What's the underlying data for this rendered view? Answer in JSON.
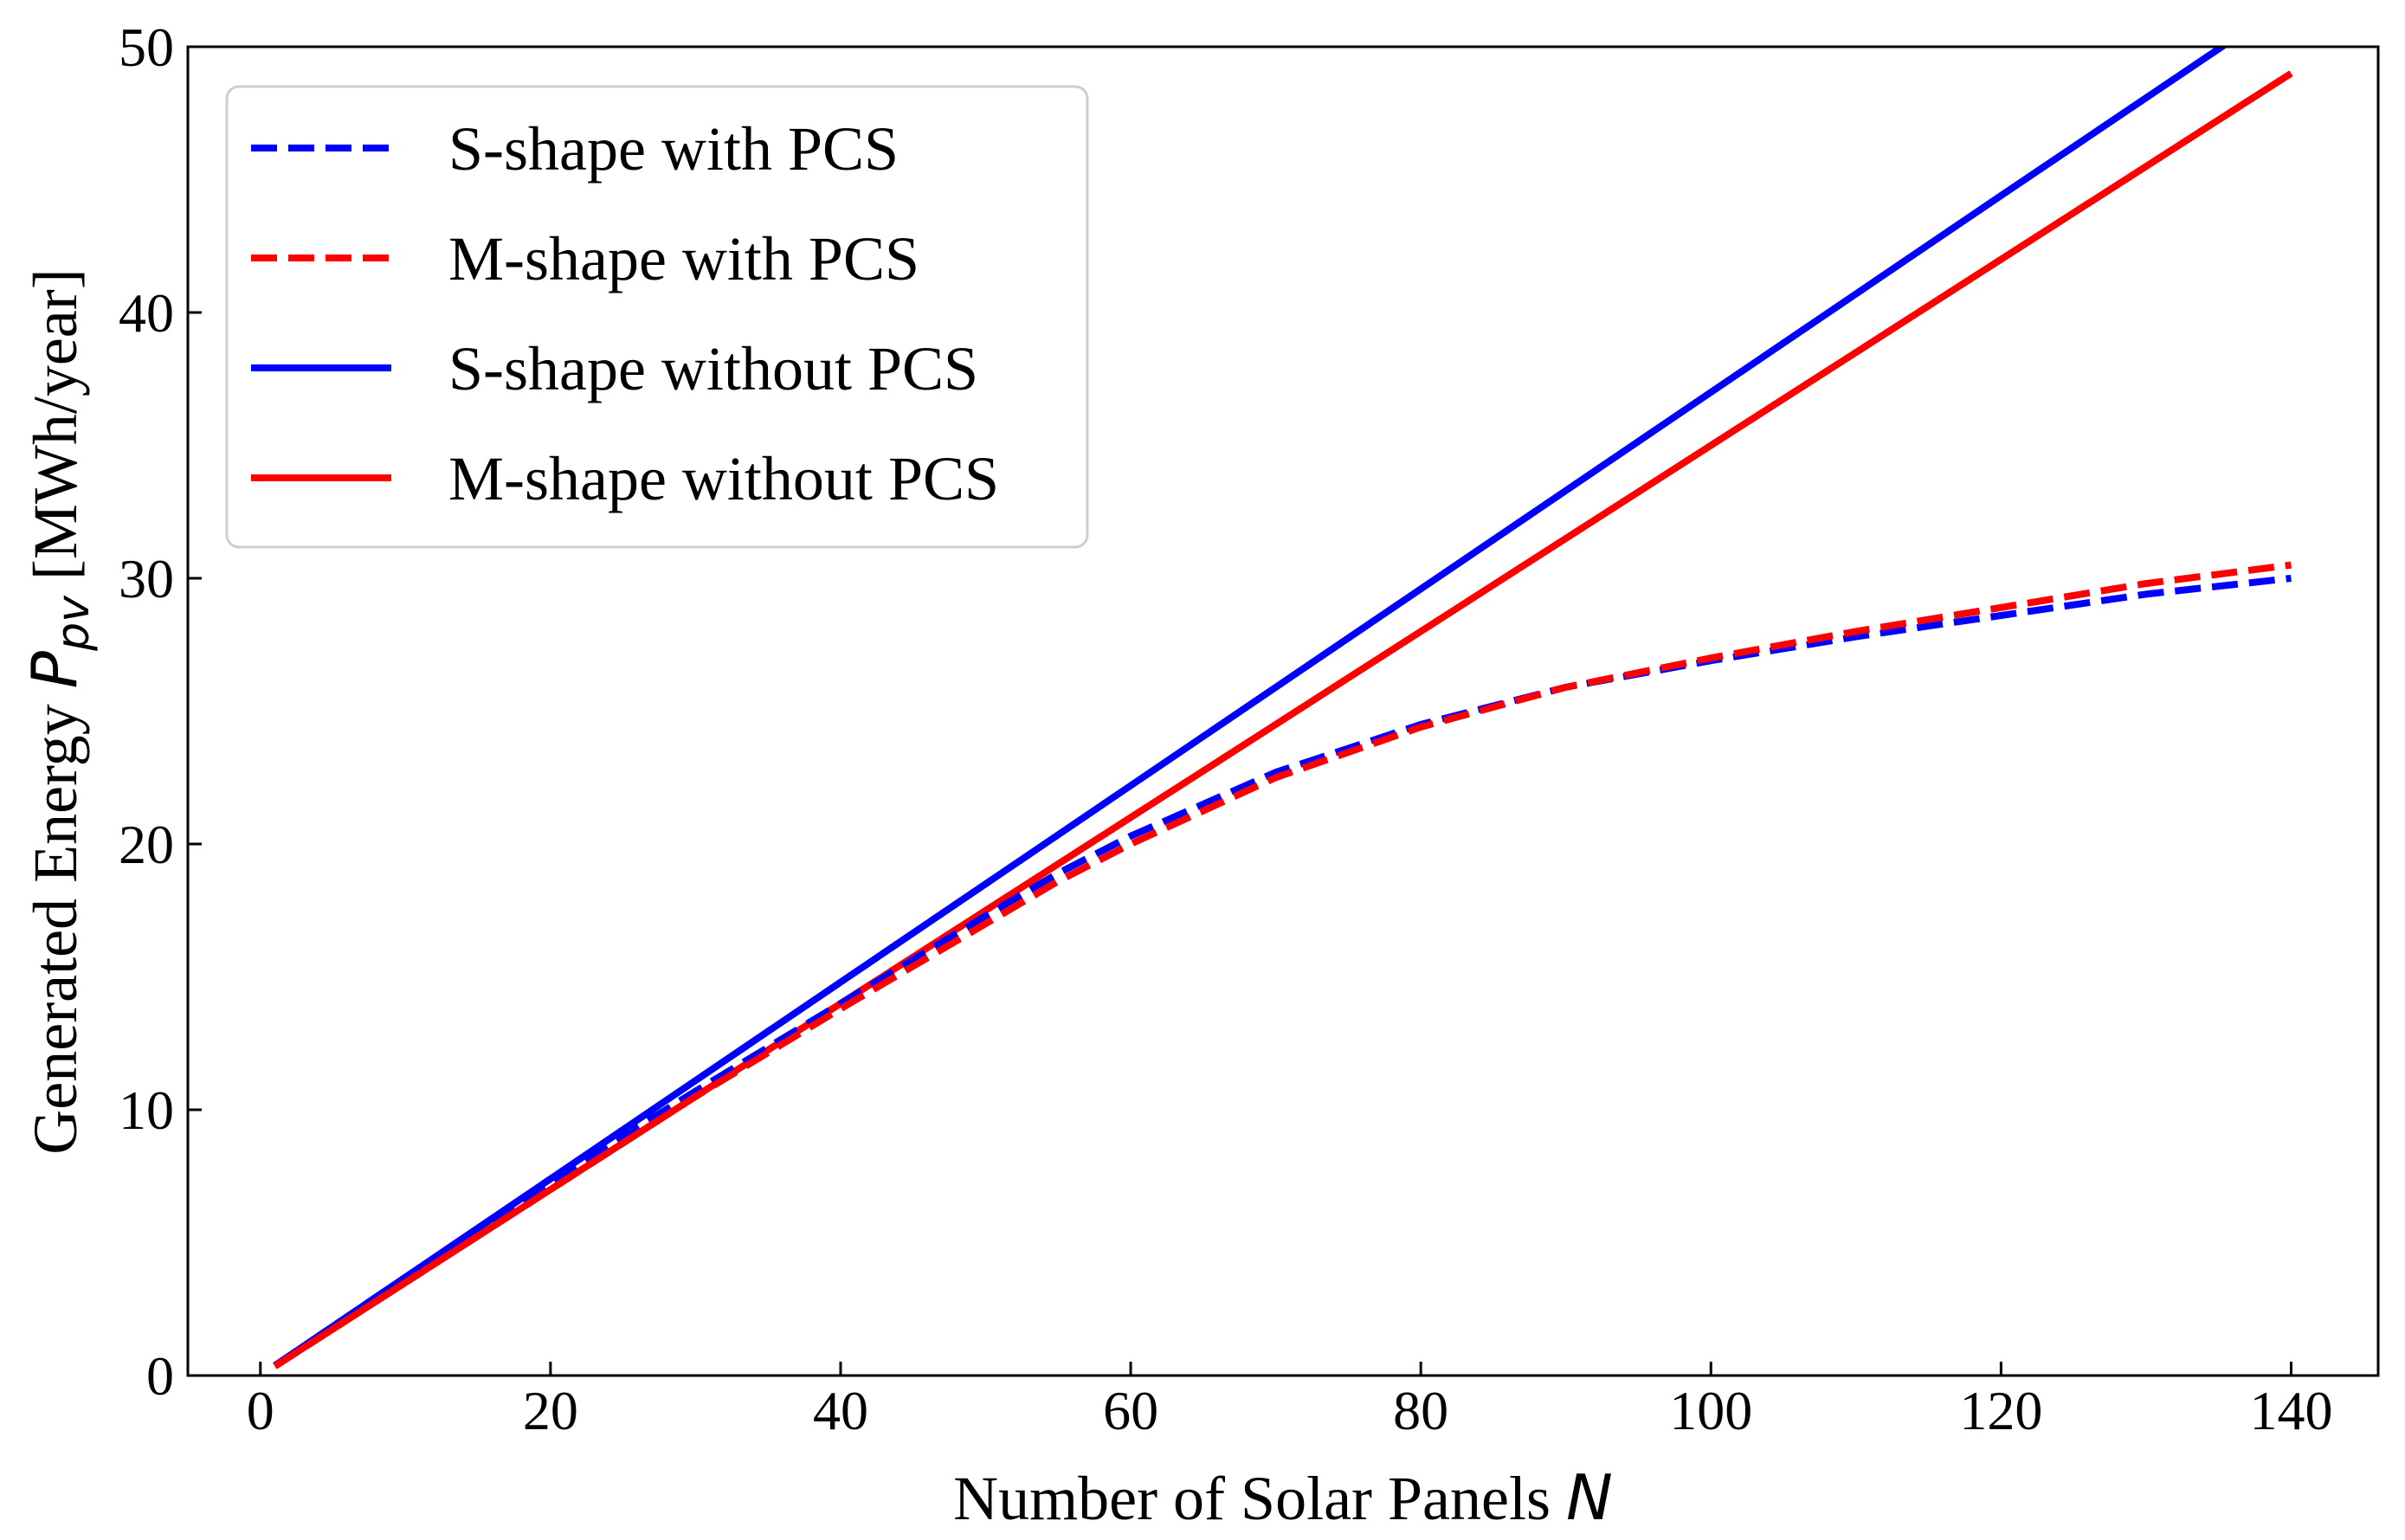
{
  "chart_data": {
    "type": "line",
    "title": "",
    "xlabel": "Number of Solar Panels",
    "xlabel_symbol": "N",
    "ylabel": "Generated Energy",
    "ylabel_symbol": "P",
    "ylabel_subscript": "pv",
    "ylabel_unit": "[MWh/year]",
    "xlim": [
      -5,
      146
    ],
    "ylim": [
      0,
      50
    ],
    "xticks": [
      0,
      20,
      40,
      60,
      80,
      100,
      120,
      140
    ],
    "yticks": [
      0,
      10,
      20,
      30,
      40,
      50
    ],
    "grid": false,
    "legend_position": "top-left",
    "series": [
      {
        "name": "S-shape with PCS",
        "color": "#0000ff",
        "style": "dashed",
        "x": [
          1,
          10,
          20,
          30,
          40,
          50,
          55,
          60,
          70,
          80,
          90,
          100,
          110,
          120,
          130,
          140
        ],
        "y": [
          0.37,
          3.7,
          7.3,
          10.7,
          14.0,
          17.3,
          18.9,
          20.3,
          22.7,
          24.5,
          25.9,
          26.9,
          27.8,
          28.6,
          29.4,
          30.0
        ]
      },
      {
        "name": "M-shape with PCS",
        "color": "#ff0000",
        "style": "dashed",
        "x": [
          1,
          10,
          20,
          30,
          40,
          50,
          55,
          60,
          70,
          80,
          90,
          100,
          110,
          120,
          130,
          140
        ],
        "y": [
          0.35,
          3.5,
          7.0,
          10.5,
          13.8,
          17.0,
          18.6,
          20.0,
          22.5,
          24.4,
          25.9,
          27.0,
          28.0,
          28.9,
          29.8,
          30.5
        ]
      },
      {
        "name": "S-shape without PCS",
        "color": "#0000ff",
        "style": "solid",
        "x": [
          1,
          20,
          40,
          60,
          80,
          100,
          120,
          135.5
        ],
        "y": [
          0.37,
          7.4,
          14.8,
          22.2,
          29.6,
          37.0,
          44.4,
          50.1
        ]
      },
      {
        "name": "M-shape without PCS",
        "color": "#ff0000",
        "style": "solid",
        "x": [
          1,
          20,
          40,
          60,
          80,
          100,
          120,
          140
        ],
        "y": [
          0.35,
          7.0,
          14.0,
          21.0,
          28.0,
          35.0,
          42.0,
          49.0
        ]
      }
    ]
  }
}
